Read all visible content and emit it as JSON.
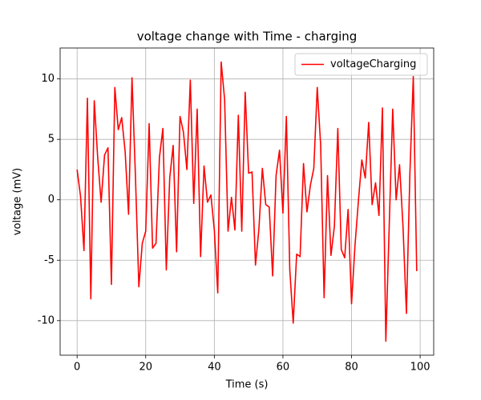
{
  "chart_data": {
    "type": "line",
    "title": "voltage change with Time - charging",
    "x_label": "Time (s)",
    "y_label": "voltage (mV)",
    "x": [
      0,
      1,
      2,
      3,
      4,
      5,
      6,
      7,
      8,
      9,
      10,
      11,
      12,
      13,
      14,
      15,
      16,
      17,
      18,
      19,
      20,
      21,
      22,
      23,
      24,
      25,
      26,
      27,
      28,
      29,
      30,
      31,
      32,
      33,
      34,
      35,
      36,
      37,
      38,
      39,
      40,
      41,
      42,
      43,
      44,
      45,
      46,
      47,
      48,
      49,
      50,
      51,
      52,
      53,
      54,
      55,
      56,
      57,
      58,
      59,
      60,
      61,
      62,
      63,
      64,
      65,
      66,
      67,
      68,
      69,
      70,
      71,
      72,
      73,
      74,
      75,
      76,
      77,
      78,
      79,
      80,
      81,
      82,
      83,
      84,
      85,
      86,
      87,
      88,
      89,
      90,
      91,
      92,
      93,
      94,
      95,
      96,
      97,
      98,
      99
    ],
    "series": [
      {
        "name": "voltageCharging",
        "color": "#ff0000",
        "values": [
          2.5,
          0.3,
          -4.2,
          8.4,
          -8.2,
          8.2,
          3.5,
          -0.2,
          3.7,
          4.3,
          -7.0,
          9.3,
          5.8,
          6.8,
          4.0,
          -1.2,
          10.1,
          2.0,
          -7.2,
          -3.6,
          -2.6,
          6.3,
          -4.0,
          -3.6,
          3.5,
          5.9,
          -5.8,
          1.8,
          4.5,
          -4.3,
          6.9,
          5.6,
          2.5,
          9.9,
          -0.3,
          7.5,
          -4.7,
          2.8,
          -0.2,
          0.4,
          -2.5,
          -7.7,
          11.4,
          8.3,
          -2.6,
          0.2,
          -2.5,
          7.0,
          -2.6,
          8.9,
          2.2,
          2.3,
          -5.4,
          -2.4,
          2.6,
          -0.4,
          -0.6,
          -6.3,
          2.0,
          4.1,
          -1.1,
          6.9,
          -5.8,
          -10.2,
          -4.5,
          -4.7,
          3.0,
          -1.0,
          1.2,
          2.6,
          9.3,
          4.5,
          -8.1,
          2.0,
          -4.6,
          -2.2,
          5.9,
          -4.1,
          -4.8,
          -0.8,
          -8.6,
          -3.8,
          -0.1,
          3.3,
          1.8,
          6.4,
          -0.4,
          1.4,
          -1.3,
          7.6,
          -11.7,
          -2.0,
          7.5,
          0.0,
          2.9,
          -2.2,
          -9.4,
          2.1,
          10.2,
          -5.9
        ]
      }
    ],
    "xlim": [
      -4.95,
      103.95
    ],
    "ylim": [
      -12.86,
      12.56
    ],
    "xticks": [
      0,
      20,
      40,
      60,
      80,
      100
    ],
    "yticks": [
      -10,
      -5,
      0,
      5,
      10
    ],
    "grid": true,
    "legend": "upper right"
  }
}
